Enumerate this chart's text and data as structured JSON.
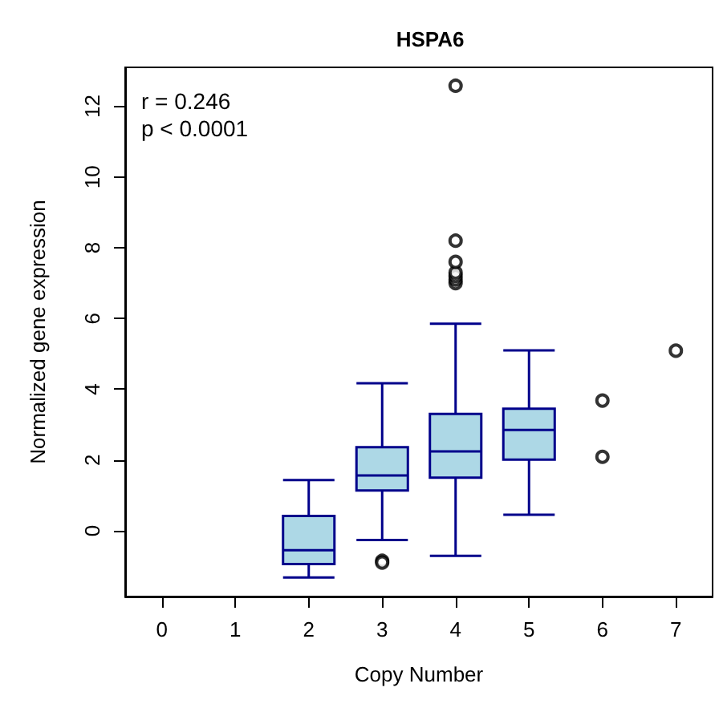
{
  "chart_data": {
    "type": "box",
    "title": "HSPA6",
    "xlabel": "Copy Number",
    "ylabel": "Normalized gene expression",
    "annotations": [
      "r = 0.246",
      "p < 0.0001"
    ],
    "categories": [
      "0",
      "1",
      "2",
      "3",
      "4",
      "5",
      "6",
      "7"
    ],
    "ylim": [
      -1.86,
      13.1
    ],
    "yticks": [
      0,
      2,
      4,
      6,
      8,
      10,
      12
    ],
    "series": [
      {
        "color": "#add8e6",
        "boxes": [
          null,
          null,
          {
            "low": -1.32,
            "q1": -0.94,
            "median": -0.55,
            "q3": 0.42,
            "high": 1.43
          },
          {
            "low": -0.26,
            "q1": 1.14,
            "median": 1.56,
            "q3": 2.36,
            "high": 4.17,
            "outliers": [
              -0.85,
              -0.9
            ]
          },
          {
            "low": -0.71,
            "q1": 1.5,
            "median": 2.24,
            "q3": 3.3,
            "high": 5.85,
            "outliers": [
              7.0,
              7.1,
              7.2,
              7.3,
              7.6,
              8.2,
              12.58
            ]
          },
          {
            "low": 0.45,
            "q1": 2.01,
            "median": 2.85,
            "q3": 3.45,
            "high": 5.1
          },
          null,
          null
        ]
      },
      {
        "type": "scatter",
        "color": "#000000",
        "marker": "circle",
        "x": [
          "6",
          "6",
          "7"
        ],
        "values": [
          3.68,
          2.09,
          5.09
        ]
      }
    ]
  }
}
